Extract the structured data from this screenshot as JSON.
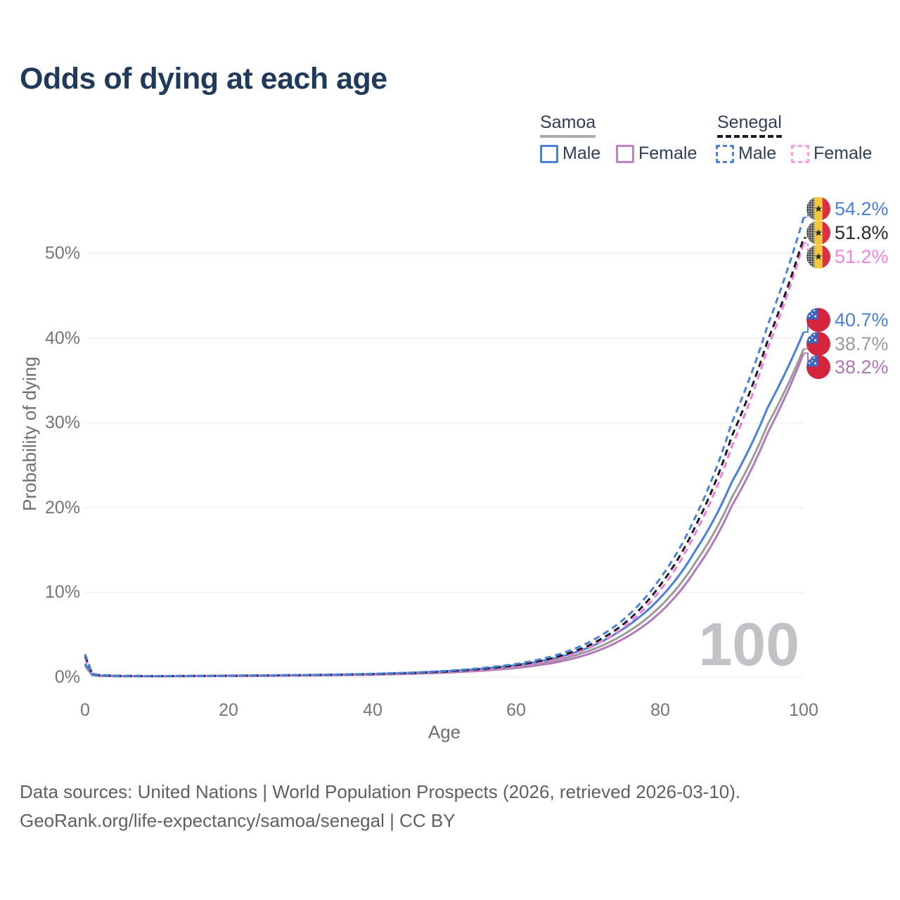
{
  "title": "Odds of dying at each age",
  "legend": {
    "groups": [
      {
        "label": "Samoa",
        "line_style": "solid",
        "underline_color": "#ababab",
        "items": [
          {
            "label": "Male",
            "color": "#4a80d8"
          },
          {
            "label": "Female",
            "color": "#bf80c5"
          }
        ]
      },
      {
        "label": "Senegal",
        "line_style": "dashed",
        "underline_color": "#1c1c1c",
        "items": [
          {
            "label": "Male",
            "color": "#4a80d8"
          },
          {
            "label": "Female",
            "color": "#fb9ce4"
          }
        ]
      }
    ]
  },
  "chart_data": {
    "type": "line",
    "title": "Odds of dying at each age",
    "xlabel": "Age",
    "ylabel": "Probability of dying",
    "xlim": [
      0,
      100
    ],
    "ylim_pct": [
      0,
      56
    ],
    "xticks": [
      "0",
      "20",
      "40",
      "60",
      "80",
      "100"
    ],
    "yticks": [
      "0%",
      "10%",
      "20%",
      "30%",
      "40%",
      "50%"
    ],
    "grid": true,
    "watermark": "100",
    "ages": [
      0,
      1,
      2,
      5,
      10,
      15,
      20,
      25,
      30,
      35,
      40,
      45,
      50,
      55,
      60,
      65,
      70,
      75,
      80,
      85,
      90,
      95,
      100
    ],
    "series": [
      {
        "name": "Senegal Male",
        "country": "Senegal",
        "sex": "Male",
        "dashed": true,
        "color": "#4a80d8",
        "label_color": "#4a80d8",
        "end_label": "54.2%",
        "end_value_pct": 54.2,
        "values": [
          2.7,
          0.4,
          0.25,
          0.16,
          0.13,
          0.15,
          0.18,
          0.21,
          0.25,
          0.31,
          0.39,
          0.52,
          0.72,
          1.05,
          1.55,
          2.45,
          4.05,
          6.85,
          11.6,
          19.0,
          30.0,
          41.5,
          54.2
        ]
      },
      {
        "name": "Senegal Both sexes",
        "country": "Senegal",
        "sex": "Both",
        "dashed": true,
        "color": "#1c1c1c",
        "label_color": "#2b2b2b",
        "end_label": "51.8%",
        "end_value_pct": 51.8,
        "values": [
          2.5,
          0.37,
          0.23,
          0.15,
          0.12,
          0.14,
          0.165,
          0.19,
          0.23,
          0.28,
          0.355,
          0.47,
          0.65,
          0.94,
          1.4,
          2.22,
          3.7,
          6.3,
          10.8,
          17.9,
          28.4,
          39.7,
          51.8
        ]
      },
      {
        "name": "Senegal Female",
        "country": "Senegal",
        "sex": "Female",
        "dashed": true,
        "color": "#f07ade",
        "label_color": "#f584dd",
        "end_label": "51.2%",
        "end_value_pct": 51.2,
        "values": [
          2.3,
          0.34,
          0.21,
          0.14,
          0.11,
          0.125,
          0.15,
          0.17,
          0.2,
          0.25,
          0.32,
          0.42,
          0.58,
          0.84,
          1.27,
          2.02,
          3.4,
          5.9,
          10.2,
          17.1,
          27.2,
          38.8,
          51.2
        ]
      },
      {
        "name": "Samoa Male",
        "country": "Samoa",
        "sex": "Male",
        "dashed": false,
        "color": "#4a80d8",
        "label_color": "#4a80d8",
        "end_label": "40.7%",
        "end_value_pct": 40.7,
        "values": [
          1.6,
          0.28,
          0.18,
          0.12,
          0.11,
          0.14,
          0.17,
          0.2,
          0.24,
          0.29,
          0.37,
          0.49,
          0.68,
          0.97,
          1.42,
          2.15,
          3.45,
          5.75,
          9.3,
          15.0,
          23.0,
          31.8,
          40.7
        ]
      },
      {
        "name": "Samoa Both sexes",
        "country": "Samoa",
        "sex": "Both",
        "dashed": false,
        "color": "#9b9b9b",
        "label_color": "#9b9b9b",
        "end_label": "38.7%",
        "end_value_pct": 38.7,
        "values": [
          1.45,
          0.25,
          0.16,
          0.11,
          0.1,
          0.125,
          0.15,
          0.18,
          0.215,
          0.26,
          0.33,
          0.44,
          0.6,
          0.85,
          1.24,
          1.88,
          3.05,
          5.05,
          8.3,
          13.6,
          21.2,
          29.8,
          38.7
        ]
      },
      {
        "name": "Samoa Female",
        "country": "Samoa",
        "sex": "Female",
        "dashed": false,
        "color": "#b577bd",
        "label_color": "#b077b8",
        "end_label": "38.2%",
        "end_value_pct": 38.2,
        "values": [
          1.3,
          0.22,
          0.14,
          0.1,
          0.09,
          0.11,
          0.13,
          0.155,
          0.185,
          0.225,
          0.285,
          0.38,
          0.52,
          0.74,
          1.08,
          1.65,
          2.7,
          4.55,
          7.6,
          12.7,
          20.2,
          28.8,
          38.2
        ]
      }
    ],
    "flags": {
      "senegal": {
        "stripe_left": "#8a8a8a",
        "stripe_mid": "#f2c83d",
        "stripe_right": "#dc2f45",
        "star": "#2b2b2b"
      },
      "samoa": {
        "field": "#d5243e",
        "canton": "#3b66c4",
        "stars": "#ffffff"
      }
    }
  },
  "footer": {
    "line1": "Data sources: United Nations | World Population Prospects (2026, retrieved 2026-03-10).",
    "line2": "GeoRank.org/life-expectancy/samoa/senegal | CC BY"
  }
}
